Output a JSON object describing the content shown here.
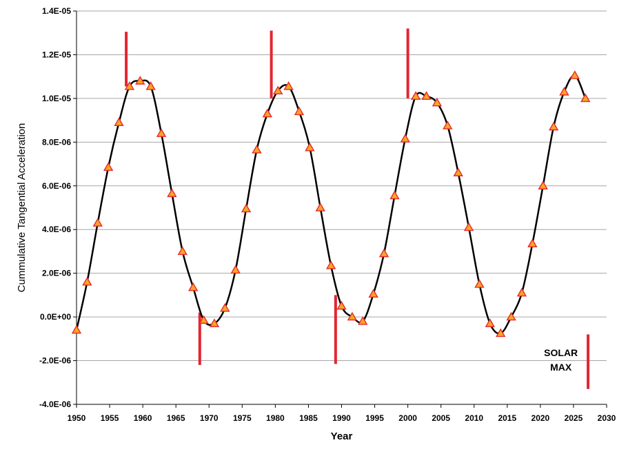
{
  "chart_data": {
    "type": "line",
    "title": "",
    "xlabel": "Year",
    "ylabel": "Cummulative Tangential Acceleration",
    "xlim": [
      1950,
      2030
    ],
    "ylim": [
      -4e-06,
      1.4e-05
    ],
    "grid": "horizontal",
    "x_ticks": [
      1950,
      1955,
      1960,
      1965,
      1970,
      1975,
      1980,
      1985,
      1990,
      1995,
      2000,
      2005,
      2010,
      2015,
      2020,
      2025,
      2030
    ],
    "y_ticks": [
      -4e-06,
      -2e-06,
      0,
      2e-06,
      4e-06,
      6e-06,
      8e-06,
      1e-05,
      1.2e-05,
      1.4e-05
    ],
    "x_tick_labels": [
      "1950",
      "1955",
      "1960",
      "1965",
      "1970",
      "1975",
      "1980",
      "1985",
      "1990",
      "1995",
      "2000",
      "2005",
      "2010",
      "2015",
      "2020",
      "2025",
      "2030"
    ],
    "y_tick_labels": [
      "-4.0E-06",
      "-2.0E-06",
      "0.0E+00",
      "2.0E-06",
      "4.0E-06",
      "6.0E-06",
      "8.0E-06",
      "1.0E-05",
      "1.2E-05",
      "1.4E-05"
    ],
    "series": [
      {
        "marker": "triangle",
        "line_color": "#000000",
        "marker_fill": "#f5a623",
        "marker_edge": "#e8282e",
        "x": [
          1950.0,
          1951.6,
          1953.2,
          1954.8,
          1956.4,
          1958.0,
          1959.6,
          1961.2,
          1962.8,
          1964.4,
          1966.0,
          1967.6,
          1969.2,
          1970.8,
          1972.4,
          1974.0,
          1975.6,
          1977.2,
          1978.8,
          1980.4,
          1982.0,
          1983.6,
          1985.2,
          1986.8,
          1988.4,
          1990.0,
          1991.6,
          1993.2,
          1994.8,
          1996.4,
          1998.0,
          1999.6,
          2001.2,
          2002.8,
          2004.4,
          2006.0,
          2007.6,
          2009.2,
          2010.8,
          2012.4,
          2014.0,
          2015.6,
          2017.2,
          2018.8,
          2020.4,
          2022.0,
          2023.6,
          2025.2,
          2026.8
        ],
        "y": [
          -6e-07,
          1.6e-06,
          4.3e-06,
          6.85e-06,
          8.9e-06,
          1.055e-05,
          1.08e-05,
          1.055e-05,
          8.4e-06,
          5.65e-06,
          3e-06,
          1.35e-06,
          -1.5e-07,
          -3e-07,
          4e-07,
          2.15e-06,
          4.95e-06,
          7.65e-06,
          9.3e-06,
          1.035e-05,
          1.055e-05,
          9.4e-06,
          7.75e-06,
          5e-06,
          2.35e-06,
          5e-07,
          0.0,
          -2e-07,
          1.05e-06,
          2.9e-06,
          5.55e-06,
          8.15e-06,
          1.01e-05,
          1.01e-05,
          9.8e-06,
          8.75e-06,
          6.6e-06,
          4.1e-06,
          1.5e-06,
          -3e-07,
          -7.5e-07,
          0.0,
          1.1e-06,
          3.35e-06,
          6e-06,
          8.7e-06,
          1.03e-05,
          1.105e-05,
          1e-05
        ]
      }
    ],
    "vertical_markers": {
      "color": "#e32530",
      "segments": [
        {
          "x": 1957.5,
          "y0": 1.055e-05,
          "y1": 1.305e-05
        },
        {
          "x": 1968.6,
          "y0": -2.2e-06,
          "y1": 2e-07
        },
        {
          "x": 1979.4,
          "y0": 1e-05,
          "y1": 1.31e-05
        },
        {
          "x": 1989.1,
          "y0": -2.15e-06,
          "y1": 1e-06
        },
        {
          "x": 2000.0,
          "y0": 1e-05,
          "y1": 1.32e-05
        },
        {
          "x": 2027.2,
          "y0": -3.3e-06,
          "y1": -8e-07
        }
      ]
    },
    "annotations": [
      {
        "text": "SOLAR",
        "x": 2023.1,
        "y": -1.8e-06
      },
      {
        "text": "MAX",
        "x": 2023.1,
        "y": -2.45e-06
      }
    ]
  }
}
